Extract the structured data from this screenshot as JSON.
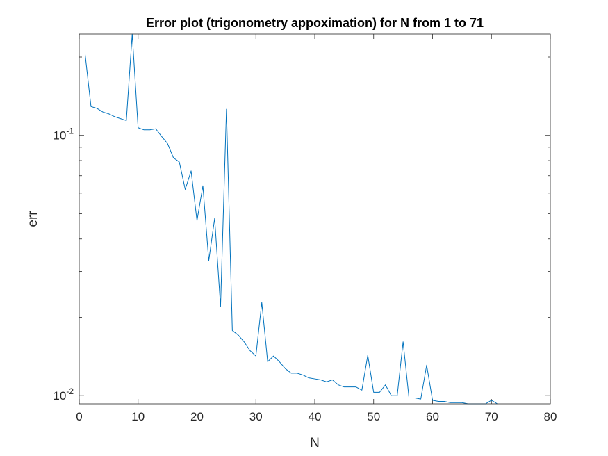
{
  "chart_data": {
    "type": "line",
    "title": "Error plot (trigonometry appoximation) for N from 1 to 71",
    "xlabel": "N",
    "ylabel": "err",
    "xlim": [
      0,
      80
    ],
    "ylim": [
      0.0093,
      0.245
    ],
    "yscale": "log",
    "grid": false,
    "x_ticks": [
      0,
      10,
      20,
      30,
      40,
      50,
      60,
      70,
      80
    ],
    "x_tick_labels": [
      "0",
      "10",
      "20",
      "30",
      "40",
      "50",
      "60",
      "70",
      "80"
    ],
    "y_ticks": [
      0.01,
      0.1
    ],
    "y_tick_labels": [
      {
        "base": "10",
        "exp": "-2"
      },
      {
        "base": "10",
        "exp": "-1"
      }
    ],
    "series": [
      {
        "color": "#0072bd",
        "x": [
          1,
          2,
          3,
          4,
          5,
          6,
          7,
          8,
          9,
          10,
          11,
          12,
          13,
          14,
          15,
          16,
          17,
          18,
          19,
          20,
          21,
          22,
          23,
          24,
          25,
          26,
          27,
          28,
          29,
          30,
          31,
          32,
          33,
          34,
          35,
          36,
          37,
          38,
          39,
          40,
          41,
          42,
          43,
          44,
          45,
          46,
          47,
          48,
          49,
          50,
          51,
          52,
          53,
          54,
          55,
          56,
          57,
          58,
          59,
          60,
          61,
          62,
          63,
          64,
          65,
          66,
          67,
          68,
          69,
          70,
          71
        ],
        "values": [
          0.205,
          0.129,
          0.127,
          0.123,
          0.121,
          0.118,
          0.116,
          0.114,
          0.245,
          0.107,
          0.105,
          0.105,
          0.106,
          0.099,
          0.093,
          0.082,
          0.079,
          0.062,
          0.073,
          0.047,
          0.064,
          0.033,
          0.048,
          0.022,
          0.126,
          0.0178,
          0.0171,
          0.0161,
          0.0149,
          0.0142,
          0.0228,
          0.0135,
          0.0142,
          0.0135,
          0.0127,
          0.0122,
          0.0122,
          0.012,
          0.0117,
          0.0116,
          0.0115,
          0.0113,
          0.0115,
          0.011,
          0.0108,
          0.0108,
          0.0108,
          0.0105,
          0.0143,
          0.0103,
          0.0103,
          0.011,
          0.01,
          0.01,
          0.0161,
          0.0098,
          0.0098,
          0.0097,
          0.0131,
          0.0096,
          0.0095,
          0.0095,
          0.0094,
          0.0094,
          0.0094,
          0.0093,
          0.0093,
          0.0093,
          0.0093,
          0.0096,
          0.0093
        ]
      }
    ]
  }
}
